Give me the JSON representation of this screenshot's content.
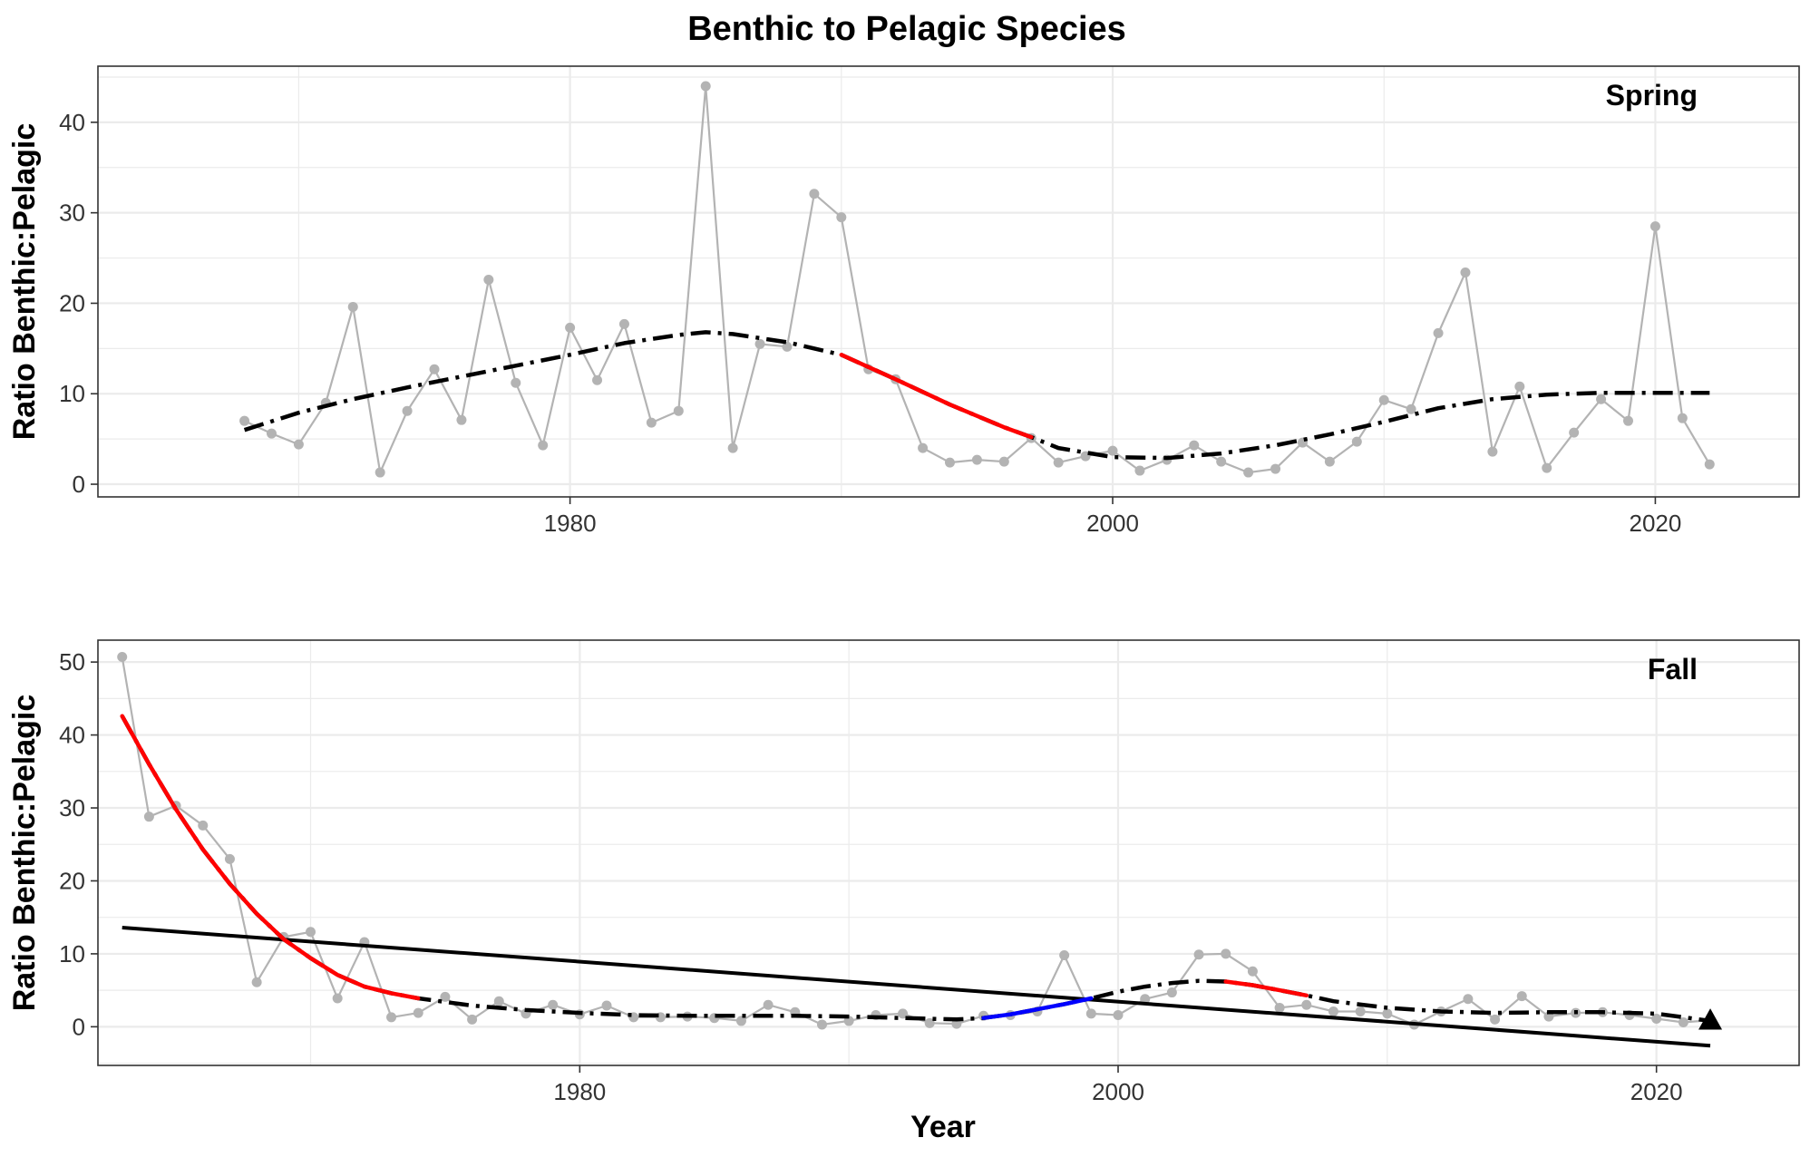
{
  "chart_data": {
    "type": "line",
    "title": "Benthic to Pelagic Species",
    "xlabel": "Year",
    "ylabel": "Ratio Benthic:Pelagic",
    "grid": true,
    "colors": {
      "observed": "#b3b3b3",
      "smooth": "#000000",
      "increase": "#0000ff",
      "decrease": "#ff0000",
      "grid": "#ebebeb",
      "border": "#333333"
    },
    "panels": [
      {
        "label": "Spring",
        "xlim": [
          1962.6,
          2025.3
        ],
        "ylim": [
          -1.4,
          46.2
        ],
        "x_ticks": [
          1980,
          2000,
          2020
        ],
        "y_ticks": [
          0,
          10,
          20,
          30,
          40
        ],
        "series": [
          {
            "role": "observed",
            "x": [
              1968,
              1969,
              1970,
              1971,
              1972,
              1973,
              1974,
              1975,
              1976,
              1977,
              1978,
              1979,
              1980,
              1981,
              1982,
              1983,
              1984,
              1985,
              1986,
              1987,
              1988,
              1989,
              1990,
              1991,
              1992,
              1993,
              1994,
              1995,
              1996,
              1997,
              1998,
              1999,
              2000,
              2001,
              2002,
              2003,
              2004,
              2005,
              2006,
              2007,
              2008,
              2009,
              2010,
              2011,
              2012,
              2013,
              2014,
              2015,
              2016,
              2017,
              2018,
              2019,
              2020,
              2021,
              2022
            ],
            "y": [
              7.0,
              5.6,
              4.4,
              9.0,
              19.6,
              1.3,
              8.1,
              12.7,
              7.1,
              22.6,
              11.2,
              4.3,
              17.3,
              11.5,
              17.7,
              6.8,
              8.1,
              44.0,
              4.0,
              15.5,
              15.2,
              32.1,
              29.5,
              12.7,
              11.6,
              4.0,
              2.4,
              2.7,
              2.5,
              5.1,
              2.4,
              3.1,
              3.7,
              1.5,
              2.7,
              4.3,
              2.5,
              1.3,
              1.7,
              4.6,
              2.5,
              4.7,
              9.3,
              8.3,
              16.7,
              23.4,
              3.6,
              10.8,
              1.8,
              5.7,
              9.4,
              7.0,
              28.5,
              7.3,
              2.2
            ]
          },
          {
            "role": "smooth",
            "x": [
              1968,
              1970,
              1972,
              1974,
              1976,
              1978,
              1980,
              1982,
              1984,
              1985,
              1986,
              1988,
              1990,
              1992,
              1994,
              1996,
              1997,
              1998,
              2000,
              2002,
              2004,
              2006,
              2008,
              2010,
              2012,
              2014,
              2016,
              2018,
              2020,
              2022
            ],
            "y": [
              6.0,
              7.9,
              9.4,
              10.7,
              11.9,
              13.1,
              14.3,
              15.6,
              16.5,
              16.8,
              16.6,
              15.7,
              14.3,
              11.6,
              8.8,
              6.3,
              5.2,
              4.0,
              3.0,
              2.9,
              3.4,
              4.3,
              5.5,
              6.9,
              8.4,
              9.4,
              9.9,
              10.1,
              10.1,
              10.1
            ]
          }
        ],
        "trend_segments": [
          {
            "direction": "decrease",
            "x": [
              1990,
              1992,
              1994,
              1996,
              1997
            ],
            "y": [
              14.3,
              11.6,
              8.8,
              6.3,
              5.2
            ]
          }
        ]
      },
      {
        "label": "Fall",
        "xlim": [
          1962.1,
          2025.3
        ],
        "ylim": [
          -5.3,
          53.0
        ],
        "x_ticks": [
          1980,
          2000,
          2020
        ],
        "y_ticks": [
          0,
          10,
          20,
          30,
          40,
          50
        ],
        "series": [
          {
            "role": "observed",
            "x": [
              1963,
              1964,
              1965,
              1966,
              1967,
              1968,
              1969,
              1970,
              1971,
              1972,
              1973,
              1974,
              1975,
              1976,
              1977,
              1978,
              1979,
              1980,
              1981,
              1982,
              1983,
              1984,
              1985,
              1986,
              1987,
              1988,
              1989,
              1990,
              1991,
              1992,
              1993,
              1994,
              1995,
              1996,
              1997,
              1998,
              1999,
              2000,
              2001,
              2002,
              2003,
              2004,
              2005,
              2006,
              2007,
              2008,
              2009,
              2010,
              2011,
              2012,
              2013,
              2014,
              2015,
              2016,
              2017,
              2018,
              2019,
              2020,
              2021,
              2022
            ],
            "y": [
              50.7,
              28.8,
              30.3,
              27.6,
              23.0,
              6.1,
              12.3,
              13.0,
              3.9,
              11.6,
              1.3,
              1.9,
              4.1,
              1.0,
              3.5,
              1.8,
              3.0,
              1.7,
              2.9,
              1.3,
              1.3,
              1.4,
              1.2,
              0.8,
              3.0,
              2.0,
              0.3,
              0.8,
              1.6,
              1.8,
              0.5,
              0.4,
              1.5,
              1.6,
              2.1,
              9.8,
              1.8,
              1.6,
              3.8,
              4.7,
              9.9,
              10.0,
              7.6,
              2.6,
              3.0,
              2.1,
              2.1,
              1.8,
              0.3,
              2.1,
              3.8,
              1.0,
              4.2,
              1.4,
              1.9,
              2.0,
              1.6,
              1.1,
              0.6,
              0.9
            ]
          },
          {
            "role": "smooth",
            "x": [
              1963,
              1964,
              1965,
              1966,
              1967,
              1968,
              1969,
              1970,
              1971,
              1972,
              1973,
              1974,
              1976,
              1978,
              1980,
              1982,
              1984,
              1986,
              1988,
              1990,
              1992,
              1994,
              1995,
              1996,
              1997,
              1998,
              1999,
              2000,
              2001,
              2002,
              2003,
              2004,
              2005,
              2006,
              2007,
              2008,
              2010,
              2012,
              2014,
              2016,
              2018,
              2020,
              2022
            ],
            "y": [
              42.6,
              36.0,
              29.8,
              24.3,
              19.6,
              15.5,
              12.0,
              9.4,
              7.1,
              5.5,
              4.6,
              3.9,
              2.9,
              2.3,
              1.9,
              1.6,
              1.5,
              1.5,
              1.5,
              1.4,
              1.2,
              1.0,
              1.2,
              1.7,
              2.4,
              3.1,
              3.9,
              4.8,
              5.5,
              6.0,
              6.3,
              6.2,
              5.7,
              5.0,
              4.3,
              3.5,
              2.6,
              2.1,
              1.9,
              2.0,
              2.0,
              1.8,
              0.8
            ]
          },
          {
            "role": "linear",
            "x": [
              1963,
              2022
            ],
            "y": [
              13.6,
              -2.6
            ]
          }
        ],
        "trend_segments": [
          {
            "direction": "decrease",
            "x": [
              1963,
              1964,
              1965,
              1966,
              1967,
              1968,
              1969,
              1970,
              1971,
              1972,
              1973,
              1974
            ],
            "y": [
              42.6,
              36.0,
              29.8,
              24.3,
              19.6,
              15.5,
              12.0,
              9.4,
              7.1,
              5.5,
              4.6,
              3.9
            ]
          },
          {
            "direction": "increase",
            "x": [
              1995,
              1996,
              1997,
              1998,
              1999
            ],
            "y": [
              1.2,
              1.7,
              2.4,
              3.1,
              3.9
            ]
          },
          {
            "direction": "decrease",
            "x": [
              2004,
              2005,
              2006,
              2007
            ],
            "y": [
              6.2,
              5.7,
              5.0,
              4.3
            ]
          }
        ],
        "markers": [
          {
            "shape": "triangle-up",
            "x": 2022,
            "y": 0.9
          }
        ]
      }
    ]
  }
}
